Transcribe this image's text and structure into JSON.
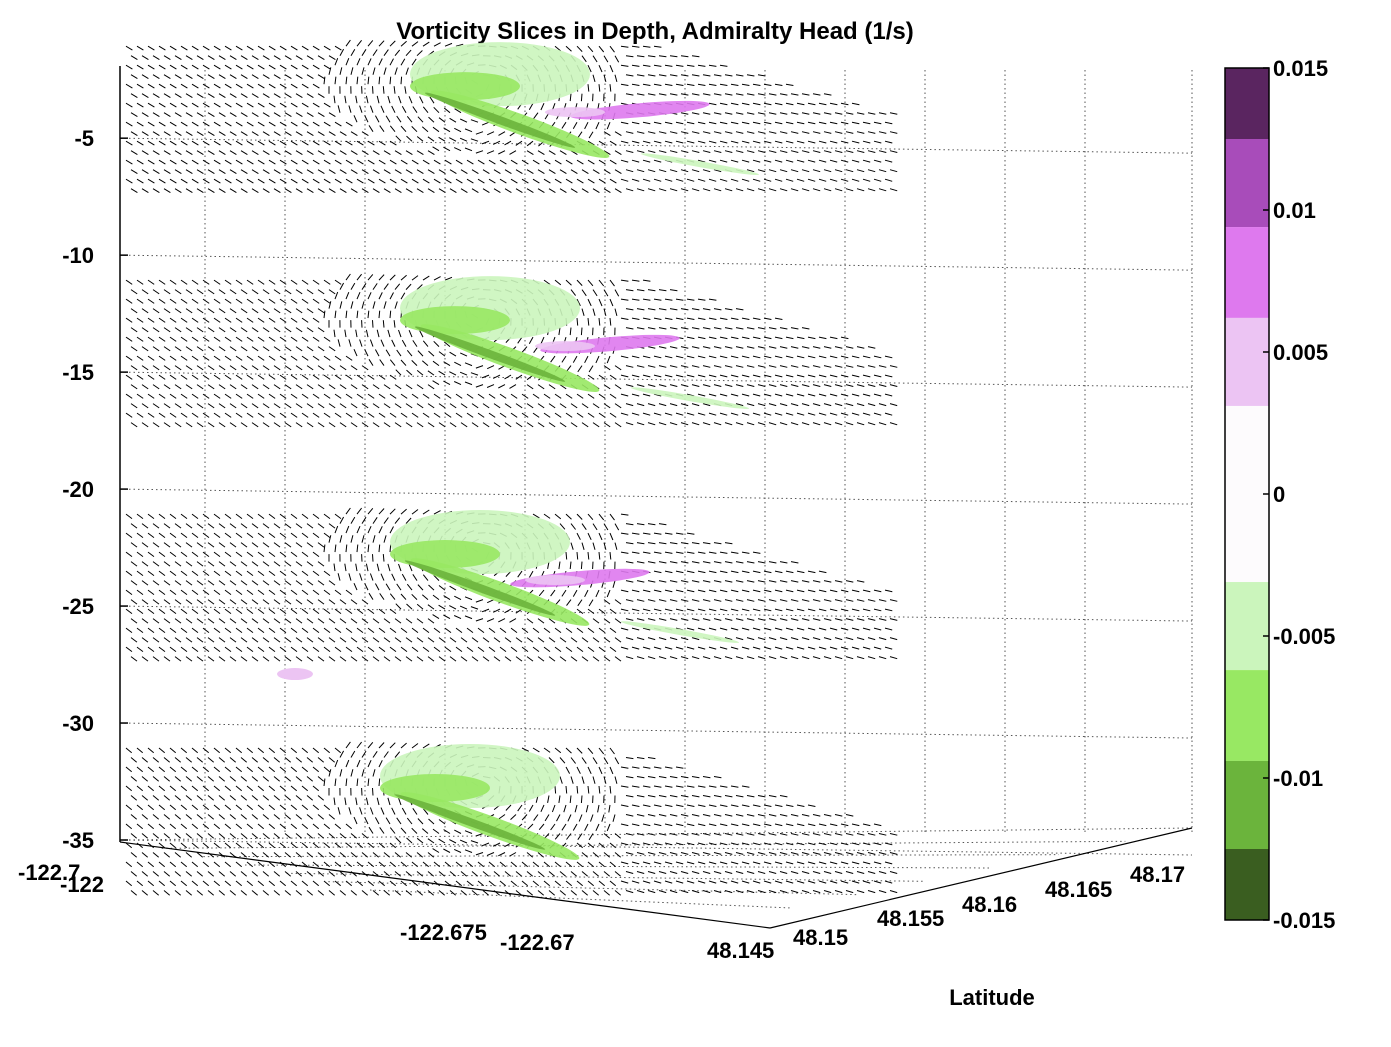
{
  "chart_data": {
    "type": "heatmap",
    "title": "Vorticity Slices in Depth, Admiralty Head (1/s)",
    "xlabel": "",
    "ylabel": "Latitude",
    "zlabel": "",
    "x_ticks": [
      "-122.7",
      "-122",
      "-122.675",
      "-122.67"
    ],
    "y_ticks": [
      "48.145",
      "48.15",
      "48.155",
      "48.16",
      "48.165",
      "48.17"
    ],
    "z_ticks": [
      -5,
      -10,
      -15,
      -20,
      -25,
      -30,
      -35
    ],
    "zlim": [
      -35,
      -2
    ],
    "slice_depths": [
      -5,
      -15,
      -25,
      -35
    ],
    "colorbar": {
      "ticks": [
        "0.015",
        "0.01",
        "0.005",
        "0",
        "-0.005",
        "-0.01",
        "-0.015"
      ],
      "range": [
        -0.015,
        0.015
      ],
      "levels": [
        {
          "from": 0.0125,
          "to": 0.015,
          "color": "#5a2560"
        },
        {
          "from": 0.0094,
          "to": 0.0125,
          "color": "#a84cba"
        },
        {
          "from": 0.0062,
          "to": 0.0094,
          "color": "#de79ee"
        },
        {
          "from": 0.0031,
          "to": 0.0062,
          "color": "#ecc4f3"
        },
        {
          "from": -0.0031,
          "to": 0.0031,
          "color": "#fdfbfd"
        },
        {
          "from": -0.0062,
          "to": -0.0031,
          "color": "#cbf5bc"
        },
        {
          "from": -0.0094,
          "to": -0.0062,
          "color": "#98e863"
        },
        {
          "from": -0.0125,
          "to": -0.0094,
          "color": "#6bb43c"
        },
        {
          "from": -0.015,
          "to": -0.0125,
          "color": "#3a5e20"
        }
      ]
    },
    "grid": true,
    "colors": {
      "strong_neg": "#3a5e20",
      "neg": "#6bb43c",
      "mid_neg": "#98e863",
      "weak_neg": "#cbf5bc",
      "weak_pos": "#ecc4f3",
      "mid_pos": "#de79ee",
      "pos": "#a84cba",
      "strong_pos": "#5a2560"
    }
  }
}
